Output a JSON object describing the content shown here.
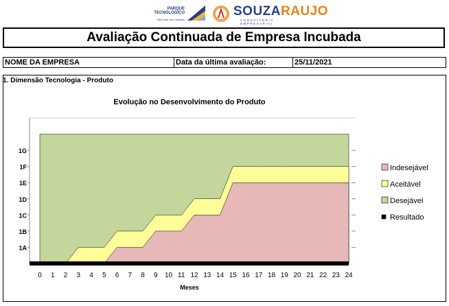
{
  "header": {
    "parque_logo_lines": [
      "PARQUE",
      "TECNOLÓGICO"
    ],
    "parque_logo_sub": "São José dos Campos",
    "souza_brand_a": "SOUZA",
    "souza_brand_b": "RAUJO",
    "souza_sub": "CONSULTORIA EMPRESARIAL"
  },
  "page_title": "Avaliação Continuada de Empresa Incubada",
  "info": {
    "company_label": "NOME DA EMPRESA",
    "date_label": "Data da última avaliação:",
    "date_value": "25/11/2021"
  },
  "section": {
    "title": "1. Dimensão Tecnologia - Produto"
  },
  "chart_data": {
    "type": "area",
    "title": "Evolução no Desenvolvimento do Produto",
    "xlabel": "Meses",
    "ylabel": "",
    "x": [
      0,
      1,
      2,
      3,
      4,
      5,
      6,
      7,
      8,
      9,
      10,
      11,
      12,
      13,
      14,
      15,
      16,
      17,
      18,
      19,
      20,
      21,
      22,
      23,
      24
    ],
    "y_categories": [
      "1A",
      "1B",
      "1C",
      "1D",
      "1E",
      "1F",
      "1G"
    ],
    "series": [
      {
        "name": "Indesejável",
        "color": "#e6b8b7",
        "values": [
          0,
          0,
          0,
          0,
          0,
          0,
          1,
          1,
          1,
          2,
          2,
          2,
          3,
          3,
          3,
          5,
          5,
          5,
          5,
          5,
          5,
          5,
          5,
          5,
          5
        ]
      },
      {
        "name": "Aceitável",
        "color": "#ffff99",
        "values": [
          0,
          0,
          0,
          1,
          1,
          1,
          2,
          2,
          2,
          3,
          3,
          3,
          4,
          4,
          4,
          6,
          6,
          6,
          6,
          6,
          6,
          6,
          6,
          6,
          6
        ]
      },
      {
        "name": "Desejável",
        "color": "#c3d69b",
        "values": [
          8,
          8,
          8,
          8,
          8,
          8,
          8,
          8,
          8,
          8,
          8,
          8,
          8,
          8,
          8,
          8,
          8,
          8,
          8,
          8,
          8,
          8,
          8,
          8,
          8
        ]
      },
      {
        "name": "Resultado",
        "color": "#000000",
        "values": [
          0,
          0,
          0,
          0,
          0,
          0,
          0,
          0,
          0,
          0,
          0,
          0,
          0,
          0,
          0,
          0,
          0,
          0,
          0,
          0,
          0,
          0,
          0,
          0,
          0
        ]
      }
    ],
    "ylim": [
      0,
      9
    ],
    "grid": false,
    "legend": "right"
  }
}
